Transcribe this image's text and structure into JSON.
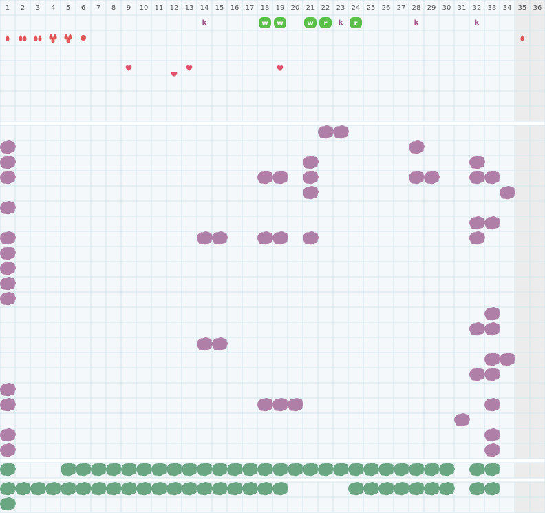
{
  "columns": [
    1,
    2,
    3,
    4,
    5,
    6,
    7,
    8,
    9,
    10,
    11,
    12,
    13,
    14,
    15,
    16,
    17,
    18,
    19,
    20,
    21,
    22,
    23,
    24,
    25,
    26,
    27,
    28,
    29,
    30,
    31,
    32,
    33,
    34,
    35,
    36
  ],
  "shaded_columns": [
    35,
    36
  ],
  "top_rows": [
    [
      {
        "col": 14,
        "letter": "k"
      },
      {
        "col": 18,
        "letter": "w",
        "badge": true
      },
      {
        "col": 19,
        "letter": "w",
        "badge": true
      },
      {
        "col": 21,
        "letter": "w",
        "badge": true
      },
      {
        "col": 22,
        "letter": "r",
        "badge": true
      },
      {
        "col": 23,
        "letter": "k"
      },
      {
        "col": 24,
        "letter": "r",
        "badge": true
      },
      {
        "col": 28,
        "letter": "k"
      },
      {
        "col": 32,
        "letter": "k"
      }
    ],
    [
      {
        "col": 1,
        "drops": 1
      },
      {
        "col": 2,
        "drops": 2
      },
      {
        "col": 3,
        "drops": 2
      },
      {
        "col": 4,
        "drops": 3
      },
      {
        "col": 5,
        "drops": 3
      },
      {
        "col": 6,
        "dot": true
      },
      {
        "col": 35,
        "drops": 1
      }
    ],
    [],
    [
      {
        "col": 9,
        "heart": true
      },
      {
        "col": 12,
        "heart": true
      },
      {
        "col": 13,
        "heart": true
      },
      {
        "col": 19,
        "heart": true
      }
    ],
    [],
    [],
    []
  ],
  "purple_rows": [
    [
      22,
      23
    ],
    [
      1,
      28
    ],
    [
      1,
      21,
      32
    ],
    [
      1,
      18,
      19,
      21,
      28,
      29,
      32,
      33
    ],
    [
      21,
      34
    ],
    [
      1
    ],
    [
      32,
      33
    ],
    [
      1,
      14,
      15,
      18,
      19,
      21,
      32
    ],
    [
      1
    ],
    [
      1
    ],
    [
      1
    ],
    [
      1
    ],
    [
      33
    ],
    [
      32,
      33
    ],
    [
      14,
      15
    ],
    [
      33,
      34
    ],
    [
      32,
      33
    ],
    [
      1
    ],
    [
      1,
      18,
      19,
      20,
      33
    ],
    [
      31
    ],
    [
      1,
      33
    ],
    [
      1,
      33
    ]
  ],
  "green_rows": [
    [
      1,
      5,
      6,
      7,
      8,
      9,
      10,
      11,
      12,
      13,
      14,
      15,
      16,
      17,
      18,
      19,
      20,
      21,
      22,
      23,
      24,
      25,
      26,
      27,
      28,
      29,
      30,
      32,
      33
    ]
  ],
  "green_rows_2": [
    [
      1,
      2,
      3,
      4,
      5,
      6,
      7,
      8,
      9,
      10,
      11,
      12,
      13,
      14,
      15,
      16,
      17,
      18,
      19,
      24,
      25,
      26,
      27,
      28,
      29,
      30,
      32,
      33
    ],
    [
      1
    ]
  ]
}
